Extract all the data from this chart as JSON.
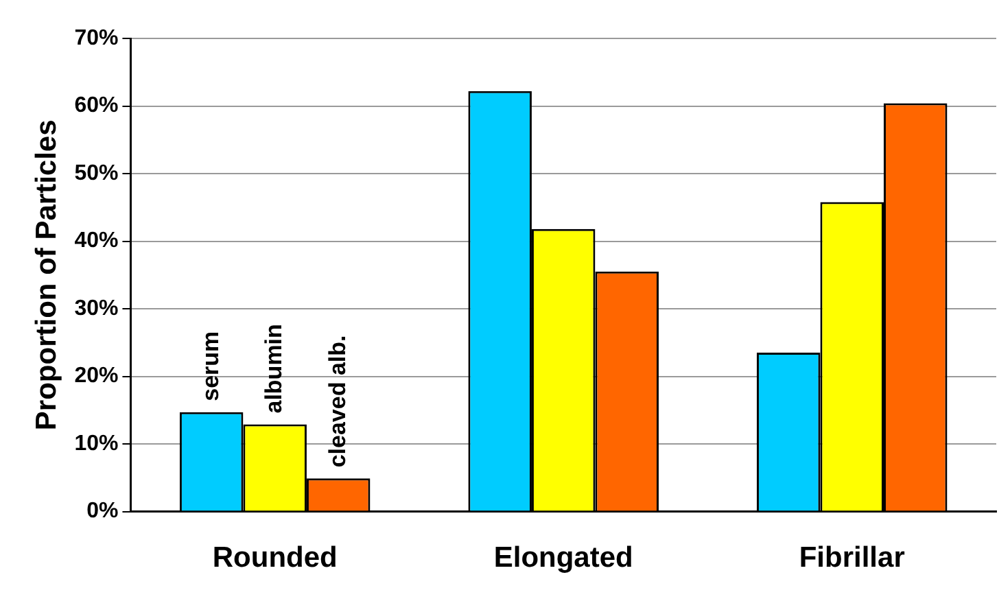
{
  "chart_data": {
    "type": "bar",
    "ylabel": "Proportion of Particles",
    "categories": [
      "Rounded",
      "Elongated",
      "Fibrillar"
    ],
    "series": [
      {
        "name": "serum",
        "color": "#00ccff",
        "values": [
          14.7,
          62.2,
          23.5
        ]
      },
      {
        "name": "albumin",
        "color": "#ffff00",
        "values": [
          12.9,
          41.8,
          45.8
        ]
      },
      {
        "name": "cleaved alb.",
        "color": "#ff6600",
        "values": [
          4.9,
          35.5,
          60.4
        ]
      }
    ],
    "ylim": [
      0,
      70
    ],
    "yticks": [
      {
        "value": 0,
        "label": "0%"
      },
      {
        "value": 10,
        "label": "10%"
      },
      {
        "value": 20,
        "label": "20%"
      },
      {
        "value": 30,
        "label": "30%"
      },
      {
        "value": 40,
        "label": "40%"
      },
      {
        "value": 50,
        "label": "50%"
      },
      {
        "value": 60,
        "label": "60%"
      },
      {
        "value": 70,
        "label": "70%"
      }
    ],
    "grid": "y",
    "legend": false
  }
}
